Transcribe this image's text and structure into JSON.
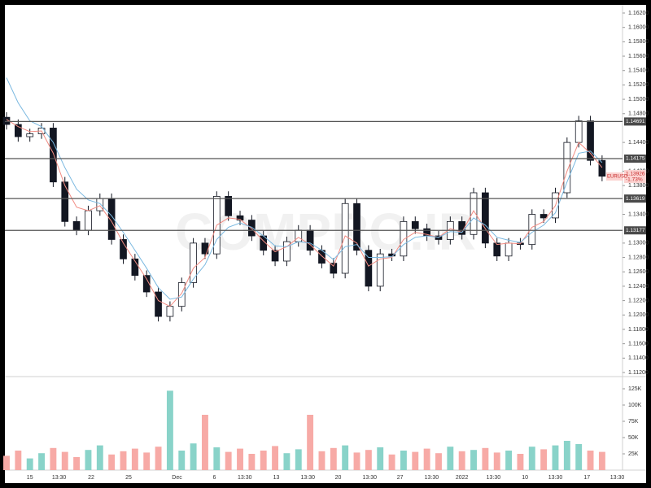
{
  "chart_data": {
    "type": "candlestick",
    "watermark": "COMPRO.IR",
    "symbol": "EURUSD",
    "last_price": {
      "value": 1.13926,
      "label": "1.13926"
    },
    "change": "-1.73%",
    "x": [
      0,
      1,
      2,
      3,
      4,
      5,
      6,
      7,
      8,
      9,
      10,
      11,
      12,
      13,
      14,
      15,
      16,
      17,
      18,
      19,
      20,
      21,
      22,
      23,
      24,
      25,
      26,
      27,
      28,
      29,
      30,
      31,
      32,
      33,
      34,
      35,
      36,
      37,
      38,
      39,
      40,
      41,
      42,
      43,
      44,
      45,
      46,
      47,
      48,
      49,
      50,
      51
    ],
    "xlim": [
      0,
      52.75
    ],
    "xticks": [
      {
        "value": 2.0,
        "label": "15"
      },
      {
        "value": 4.5,
        "label": "13:30"
      },
      {
        "value": 7.25,
        "label": "22"
      },
      {
        "value": 10.45,
        "label": "25"
      },
      {
        "value": 14.6,
        "label": "Dec"
      },
      {
        "value": 17.8,
        "label": "6"
      },
      {
        "value": 20.4,
        "label": "13:30"
      },
      {
        "value": 23.1,
        "label": "13"
      },
      {
        "value": 25.8,
        "label": "13:30"
      },
      {
        "value": 28.4,
        "label": "20"
      },
      {
        "value": 31.1,
        "label": "13:30"
      },
      {
        "value": 33.7,
        "label": "27"
      },
      {
        "value": 36.4,
        "label": "13:30"
      },
      {
        "value": 39.0,
        "label": "2022"
      },
      {
        "value": 41.7,
        "label": "13:30"
      },
      {
        "value": 44.4,
        "label": "10"
      },
      {
        "value": 47.0,
        "label": "13:30"
      },
      {
        "value": 49.7,
        "label": "17"
      },
      {
        "value": 52.3,
        "label": "13:30"
      }
    ],
    "open": [
      1.1475,
      1.1465,
      1.1448,
      1.1452,
      1.146,
      1.1385,
      1.133,
      1.1318,
      1.1345,
      1.1362,
      1.1305,
      1.1278,
      1.1255,
      1.1232,
      1.1198,
      1.1212,
      1.1245,
      1.13,
      1.1285,
      1.1365,
      1.1338,
      1.1332,
      1.131,
      1.129,
      1.1275,
      1.1302,
      1.1318,
      1.129,
      1.1272,
      1.1258,
      1.1355,
      1.129,
      1.124,
      1.1285,
      1.1282,
      1.133,
      1.132,
      1.131,
      1.1305,
      1.133,
      1.1312,
      1.137,
      1.13,
      1.1282,
      1.13,
      1.1298,
      1.134,
      1.1335,
      1.137,
      1.144,
      1.147,
      1.1415
    ],
    "high": [
      1.1482,
      1.1472,
      1.1459,
      1.1467,
      1.1467,
      1.1392,
      1.1337,
      1.1352,
      1.1369,
      1.1369,
      1.1312,
      1.1285,
      1.1262,
      1.1239,
      1.1219,
      1.1252,
      1.1307,
      1.1307,
      1.1372,
      1.1372,
      1.1345,
      1.1339,
      1.1317,
      1.1297,
      1.1309,
      1.1325,
      1.1325,
      1.1297,
      1.1279,
      1.1362,
      1.1362,
      1.1297,
      1.1292,
      1.1292,
      1.1337,
      1.1337,
      1.1327,
      1.1317,
      1.1337,
      1.1337,
      1.1377,
      1.1377,
      1.1307,
      1.1307,
      1.1307,
      1.1347,
      1.1347,
      1.1377,
      1.1447,
      1.1477,
      1.1477,
      1.1422
    ],
    "low": [
      1.1458,
      1.1441,
      1.1441,
      1.1445,
      1.1378,
      1.1323,
      1.1311,
      1.1311,
      1.1338,
      1.1298,
      1.1271,
      1.1248,
      1.1225,
      1.1191,
      1.1191,
      1.1205,
      1.1238,
      1.1278,
      1.1278,
      1.1331,
      1.1325,
      1.1303,
      1.1283,
      1.1268,
      1.1268,
      1.1295,
      1.1283,
      1.1265,
      1.1251,
      1.1251,
      1.1283,
      1.1233,
      1.1233,
      1.1275,
      1.1275,
      1.1313,
      1.1303,
      1.1298,
      1.1298,
      1.1305,
      1.1305,
      1.1293,
      1.1275,
      1.1275,
      1.1291,
      1.1291,
      1.1328,
      1.1328,
      1.1363,
      1.1433,
      1.1408,
      1.1386
    ],
    "close": [
      1.1465,
      1.1448,
      1.1452,
      1.146,
      1.1385,
      1.133,
      1.1318,
      1.1345,
      1.1362,
      1.1305,
      1.1278,
      1.1255,
      1.1232,
      1.1198,
      1.1212,
      1.1245,
      1.13,
      1.1285,
      1.1365,
      1.1338,
      1.1332,
      1.131,
      1.129,
      1.1275,
      1.1302,
      1.1318,
      1.129,
      1.1272,
      1.1258,
      1.1355,
      1.129,
      1.124,
      1.1285,
      1.1282,
      1.133,
      1.132,
      1.131,
      1.1305,
      1.133,
      1.1312,
      1.137,
      1.13,
      1.1282,
      1.13,
      1.1298,
      1.134,
      1.1335,
      1.137,
      1.144,
      1.147,
      1.1415,
      1.1393
    ],
    "ylim": [
      1.112,
      1.162
    ],
    "yticks": [
      {
        "value": 1.112,
        "label": "1.11200"
      },
      {
        "value": 1.114,
        "label": "1.11400"
      },
      {
        "value": 1.116,
        "label": "1.11600"
      },
      {
        "value": 1.118,
        "label": "1.11800"
      },
      {
        "value": 1.12,
        "label": "1.12000"
      },
      {
        "value": 1.122,
        "label": "1.12200"
      },
      {
        "value": 1.124,
        "label": "1.12400"
      },
      {
        "value": 1.126,
        "label": "1.12600"
      },
      {
        "value": 1.128,
        "label": "1.12800"
      },
      {
        "value": 1.13,
        "label": "1.13000"
      },
      {
        "value": 1.134,
        "label": "1.13400"
      },
      {
        "value": 1.138,
        "label": "1.13800"
      },
      {
        "value": 1.14,
        "label": "1.14000"
      },
      {
        "value": 1.144,
        "label": "1.14400"
      },
      {
        "value": 1.148,
        "label": "1.14800"
      },
      {
        "value": 1.15,
        "label": "1.15000"
      },
      {
        "value": 1.152,
        "label": "1.15200"
      },
      {
        "value": 1.154,
        "label": "1.15400"
      },
      {
        "value": 1.156,
        "label": "1.15600"
      },
      {
        "value": 1.158,
        "label": "1.15800"
      },
      {
        "value": 1.16,
        "label": "1.16000"
      },
      {
        "value": 1.162,
        "label": "1.16200"
      }
    ],
    "levels": [
      {
        "value": 1.14691,
        "label": "1.14691"
      },
      {
        "value": 1.14175,
        "label": "1.14175"
      },
      {
        "value": 1.13619,
        "label": "1.13619"
      },
      {
        "value": 1.13177,
        "label": "1.13177"
      }
    ],
    "up_color": "#ffffff",
    "down_color": "#131722",
    "series": [
      {
        "color": "#f28b82",
        "values": [
          1.1472,
          1.1462,
          1.1455,
          1.1456,
          1.1425,
          1.138,
          1.135,
          1.1345,
          1.1352,
          1.133,
          1.13,
          1.1275,
          1.125,
          1.122,
          1.1212,
          1.123,
          1.1265,
          1.128,
          1.1325,
          1.1335,
          1.1333,
          1.132,
          1.1303,
          1.1288,
          1.1295,
          1.1308,
          1.1298,
          1.1282,
          1.1268,
          1.131,
          1.13,
          1.1268,
          1.1278,
          1.128,
          1.1305,
          1.1315,
          1.1312,
          1.1308,
          1.132,
          1.1315,
          1.1345,
          1.132,
          1.1298,
          1.13,
          1.1299,
          1.1322,
          1.133,
          1.1352,
          1.14,
          1.144,
          1.1425,
          1.1405
        ]
      },
      {
        "color": "#7ab8e0",
        "values": [
          1.153,
          1.1495,
          1.147,
          1.1462,
          1.144,
          1.1405,
          1.1375,
          1.136,
          1.1355,
          1.1338,
          1.1315,
          1.129,
          1.1265,
          1.1238,
          1.1222,
          1.1225,
          1.125,
          1.127,
          1.1305,
          1.1322,
          1.1328,
          1.1322,
          1.131,
          1.1296,
          1.1295,
          1.1302,
          1.13,
          1.129,
          1.1277,
          1.1295,
          1.1298,
          1.128,
          1.128,
          1.1281,
          1.1298,
          1.1308,
          1.131,
          1.1308,
          1.1316,
          1.1315,
          1.1335,
          1.1325,
          1.1308,
          1.1304,
          1.1301,
          1.1315,
          1.1325,
          1.1342,
          1.1385,
          1.1425,
          1.1428,
          1.1412
        ]
      }
    ],
    "volume": [
      22000,
      30000,
      18000,
      26000,
      34000,
      28000,
      20000,
      31000,
      38000,
      24000,
      29000,
      33000,
      27000,
      36000,
      122000,
      30000,
      41000,
      85000,
      35000,
      28000,
      33000,
      25000,
      30000,
      37000,
      26000,
      32000,
      85000,
      29000,
      34000,
      38000,
      27000,
      31000,
      35000,
      24000,
      30000,
      28000,
      33000,
      26000,
      36000,
      29000,
      31000,
      34000,
      27000,
      30000,
      25000,
      36000,
      32000,
      38000,
      45000,
      40000,
      30000,
      28000
    ],
    "volume_up_color": "#89d3c9",
    "volume_down_color": "#f7aaa6",
    "vlim": [
      0,
      140000
    ],
    "vticks": [
      {
        "value": 25000,
        "label": "25K"
      },
      {
        "value": 50000,
        "label": "50K"
      },
      {
        "value": 75000,
        "label": "75K"
      },
      {
        "value": 100000,
        "label": "100K"
      },
      {
        "value": 125000,
        "label": "125K"
      }
    ]
  }
}
